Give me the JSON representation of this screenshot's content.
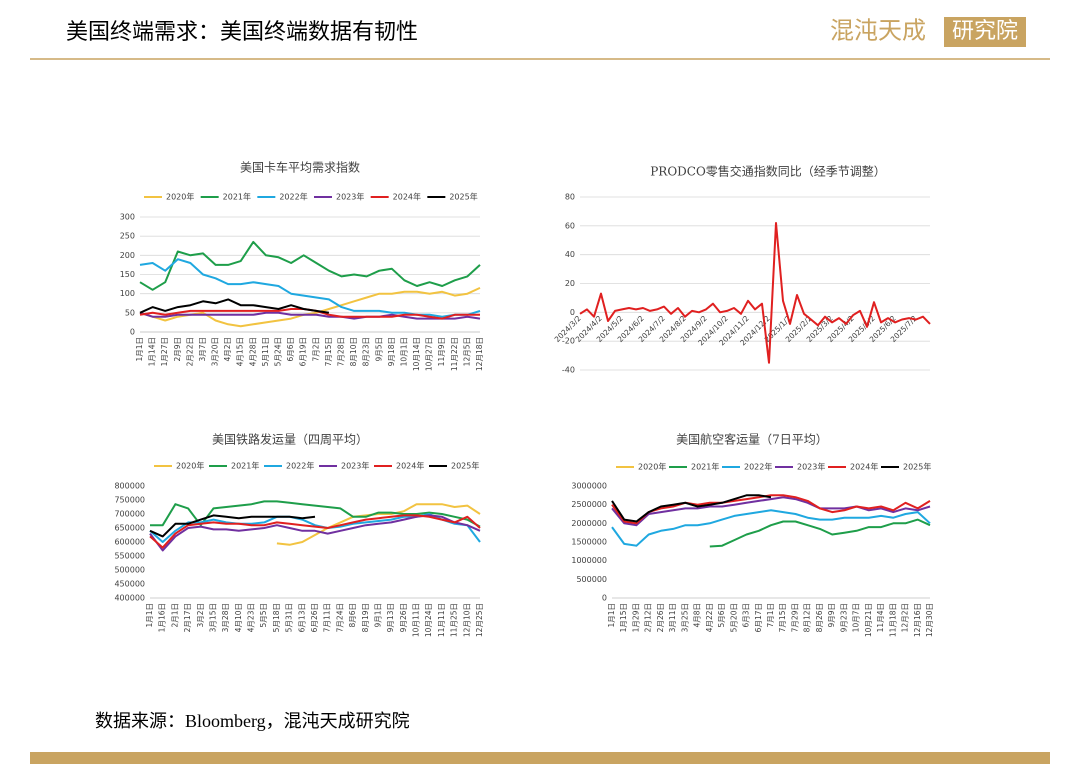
{
  "header": {
    "title": "美国终端需求：美国终端数据有韧性",
    "logo_name": "混沌天成",
    "logo_unit": "研究院"
  },
  "footer": {
    "source": "数据来源：Bloomberg，混沌天成研究院"
  },
  "chart_data": [
    {
      "type": "line",
      "title": "美国卡车平均需求指数",
      "grid": true,
      "legend": true,
      "ylim": [
        0,
        300
      ],
      "yticks": [
        0,
        50,
        100,
        150,
        200,
        250,
        300
      ],
      "categories": [
        "1月1日",
        "1月14日",
        "1月27日",
        "2月9日",
        "2月22日",
        "3月7日",
        "3月20日",
        "4月2日",
        "4月15日",
        "4月28日",
        "5月11日",
        "5月24日",
        "6月6日",
        "6月19日",
        "7月2日",
        "7月15日",
        "7月28日",
        "8月10日",
        "8月23日",
        "9月5日",
        "9月18日",
        "10月1日",
        "10月14日",
        "10月27日",
        "11月9日",
        "11月22日",
        "12月5日",
        "12月18日"
      ],
      "series": [
        {
          "name": "2020年",
          "color": "#f2c341",
          "values": [
            50,
            40,
            30,
            40,
            45,
            50,
            30,
            20,
            15,
            20,
            25,
            30,
            35,
            45,
            50,
            60,
            70,
            80,
            90,
            100,
            100,
            105,
            105,
            100,
            105,
            95,
            100,
            115
          ]
        },
        {
          "name": "2021年",
          "color": "#1e9e4a",
          "values": [
            130,
            110,
            130,
            210,
            200,
            205,
            175,
            175,
            185,
            235,
            200,
            195,
            180,
            200,
            180,
            160,
            145,
            150,
            145,
            160,
            165,
            135,
            120,
            130,
            120,
            135,
            145,
            175
          ]
        },
        {
          "name": "2022年",
          "color": "#1fa8e0",
          "values": [
            175,
            180,
            160,
            190,
            180,
            150,
            140,
            125,
            125,
            130,
            125,
            120,
            100,
            95,
            90,
            85,
            65,
            55,
            55,
            55,
            50,
            50,
            45,
            45,
            40,
            45,
            45,
            55
          ]
        },
        {
          "name": "2023年",
          "color": "#7030a0",
          "values": [
            50,
            40,
            40,
            45,
            45,
            45,
            45,
            45,
            45,
            45,
            50,
            50,
            45,
            45,
            45,
            40,
            40,
            35,
            40,
            40,
            45,
            40,
            35,
            35,
            35,
            35,
            40,
            35
          ]
        },
        {
          "name": "2024年",
          "color": "#e02020",
          "values": [
            45,
            50,
            45,
            50,
            55,
            55,
            55,
            55,
            55,
            55,
            55,
            55,
            60,
            60,
            55,
            45,
            40,
            40,
            40,
            40,
            40,
            45,
            45,
            40,
            35,
            45,
            45,
            45
          ]
        },
        {
          "name": "2025年",
          "color": "#000000",
          "values": [
            50,
            65,
            55,
            65,
            70,
            80,
            75,
            85,
            70,
            70,
            65,
            60,
            70,
            60,
            55,
            50,
            null,
            null,
            null,
            null,
            null,
            null,
            null,
            null,
            null,
            null,
            null,
            null
          ]
        }
      ]
    },
    {
      "type": "line",
      "title": "PRODCO零售交通指数同比（经季节调整）",
      "grid": true,
      "legend": false,
      "ylim": [
        -40,
        80
      ],
      "yticks": [
        -40,
        -20,
        0,
        20,
        40,
        60,
        80
      ],
      "color": "#e02020",
      "categories": [
        "2024/3/2",
        null,
        null,
        "2024/4/2",
        null,
        null,
        "2024/5/2",
        null,
        null,
        "2024/6/2",
        null,
        null,
        "2024/7/2",
        null,
        null,
        "2024/8/2",
        null,
        null,
        "2024/9/2",
        null,
        null,
        "2024/10/2",
        null,
        null,
        "2024/11/2",
        null,
        null,
        "2024/12/2",
        null,
        null,
        "2025/1/2",
        null,
        null,
        "2025/2/2",
        null,
        null,
        "2025/3/2",
        null,
        null,
        "2025/4/2",
        null,
        null,
        "2025/5/2",
        null,
        null,
        "2025/6/2",
        null,
        null,
        "2025/7/2",
        null,
        null
      ],
      "values": [
        -1,
        2,
        -3,
        13,
        -6,
        1,
        2,
        3,
        2,
        3,
        1,
        2,
        4,
        -1,
        3,
        -3,
        1,
        0,
        2,
        6,
        0,
        1,
        3,
        -1,
        8,
        2,
        6,
        -35,
        62,
        8,
        -8,
        12,
        -1,
        -5,
        -9,
        -3,
        -7,
        -4,
        -8,
        -2,
        1,
        -10,
        7,
        -7,
        -4,
        -7,
        -5,
        -4,
        -5,
        -3,
        -8
      ]
    },
    {
      "type": "line",
      "title": "美国铁路发运量（四周平均）",
      "grid": false,
      "legend": true,
      "ylim": [
        400000,
        800000
      ],
      "yticks": [
        400000,
        450000,
        500000,
        550000,
        600000,
        650000,
        700000,
        750000,
        800000
      ],
      "categories": [
        "1月1日",
        "1月16日",
        "2月1日",
        "2月17日",
        "3月2日",
        "3月15日",
        "3月28日",
        "4月10日",
        "4月23日",
        "5月5日",
        "5月18日",
        "5月31日",
        "6月13日",
        "6月26日",
        "7月11日",
        "7月24日",
        "8月6日",
        "8月19日",
        "9月1日",
        "9月13日",
        "9月26日",
        "10月11日",
        "10月24日",
        "11月11日",
        "11月25日",
        "12月10日",
        "12月25日"
      ],
      "series": [
        {
          "name": "2020年",
          "color": "#f2c341",
          "values": [
            null,
            null,
            null,
            null,
            null,
            null,
            null,
            null,
            null,
            null,
            595000,
            590000,
            600000,
            625000,
            650000,
            670000,
            690000,
            695000,
            700000,
            700000,
            710000,
            735000,
            735000,
            735000,
            725000,
            730000,
            700000
          ]
        },
        {
          "name": "2021年",
          "color": "#1e9e4a",
          "values": [
            660000,
            660000,
            735000,
            720000,
            660000,
            720000,
            725000,
            730000,
            735000,
            745000,
            745000,
            740000,
            735000,
            730000,
            725000,
            720000,
            690000,
            690000,
            705000,
            705000,
            700000,
            700000,
            705000,
            700000,
            690000,
            680000,
            655000
          ]
        },
        {
          "name": "2022年",
          "color": "#1fa8e0",
          "values": [
            640000,
            600000,
            640000,
            670000,
            670000,
            680000,
            670000,
            665000,
            665000,
            670000,
            690000,
            690000,
            680000,
            660000,
            650000,
            655000,
            665000,
            670000,
            675000,
            680000,
            690000,
            690000,
            700000,
            680000,
            665000,
            660000,
            600000
          ]
        },
        {
          "name": "2023年",
          "color": "#7030a0",
          "values": [
            630000,
            570000,
            620000,
            650000,
            655000,
            645000,
            645000,
            640000,
            645000,
            650000,
            660000,
            650000,
            640000,
            640000,
            630000,
            640000,
            650000,
            660000,
            665000,
            670000,
            680000,
            690000,
            695000,
            690000,
            670000,
            660000,
            640000
          ]
        },
        {
          "name": "2024年",
          "color": "#e02020",
          "values": [
            620000,
            580000,
            630000,
            660000,
            665000,
            670000,
            665000,
            665000,
            660000,
            660000,
            670000,
            665000,
            660000,
            655000,
            650000,
            660000,
            670000,
            680000,
            685000,
            690000,
            695000,
            695000,
            690000,
            680000,
            670000,
            690000,
            650000
          ]
        },
        {
          "name": "2025年",
          "color": "#000000",
          "values": [
            640000,
            620000,
            665000,
            665000,
            680000,
            695000,
            690000,
            685000,
            690000,
            690000,
            690000,
            690000,
            685000,
            690000,
            null,
            null,
            null,
            null,
            null,
            null,
            null,
            null,
            null,
            null,
            null,
            null,
            null
          ]
        }
      ]
    },
    {
      "type": "line",
      "title": "美国航空客运量（7日平均）",
      "grid": false,
      "legend": true,
      "ylim": [
        0,
        3000000
      ],
      "yticks": [
        0,
        500000,
        1000000,
        1500000,
        2000000,
        2500000,
        3000000
      ],
      "categories": [
        "1月1日",
        "1月15日",
        "1月29日",
        "2月12日",
        "2月26日",
        "3月11日",
        "3月25日",
        "4月8日",
        "4月22日",
        "5月6日",
        "5月20日",
        "6月3日",
        "6月17日",
        "7月1日",
        "7月15日",
        "7月29日",
        "8月12日",
        "8月26日",
        "9月9日",
        "9月23日",
        "10月7日",
        "10月21日",
        "11月4日",
        "11月18日",
        "12月2日",
        "12月16日",
        "12月30日"
      ],
      "series": [
        {
          "name": "2020年",
          "color": "#f2c341",
          "values": [
            null,
            null,
            null,
            null,
            null,
            null,
            null,
            null,
            null,
            null,
            null,
            null,
            null,
            null,
            null,
            null,
            null,
            null,
            null,
            null,
            null,
            null,
            null,
            null,
            null,
            null,
            null
          ]
        },
        {
          "name": "2021年",
          "color": "#1e9e4a",
          "values": [
            null,
            null,
            null,
            null,
            null,
            null,
            null,
            null,
            1380000,
            1400000,
            1550000,
            1700000,
            1800000,
            1950000,
            2050000,
            2050000,
            1950000,
            1850000,
            1700000,
            1750000,
            1800000,
            1900000,
            1900000,
            2000000,
            2000000,
            2100000,
            1950000
          ]
        },
        {
          "name": "2022年",
          "color": "#1fa8e0",
          "values": [
            1900000,
            1450000,
            1400000,
            1700000,
            1800000,
            1850000,
            1950000,
            1950000,
            2000000,
            2100000,
            2200000,
            2250000,
            2300000,
            2350000,
            2300000,
            2250000,
            2150000,
            2100000,
            2100000,
            2150000,
            2150000,
            2150000,
            2200000,
            2150000,
            2250000,
            2300000,
            2000000
          ]
        },
        {
          "name": "2023年",
          "color": "#7030a0",
          "values": [
            2400000,
            2000000,
            1950000,
            2250000,
            2300000,
            2350000,
            2400000,
            2400000,
            2450000,
            2450000,
            2500000,
            2550000,
            2600000,
            2650000,
            2700000,
            2650000,
            2550000,
            2400000,
            2400000,
            2400000,
            2450000,
            2350000,
            2400000,
            2300000,
            2400000,
            2350000,
            2450000
          ]
        },
        {
          "name": "2024年",
          "color": "#e02020",
          "values": [
            2500000,
            2050000,
            2000000,
            2300000,
            2400000,
            2450000,
            2550000,
            2500000,
            2550000,
            2550000,
            2600000,
            2650000,
            2700000,
            2750000,
            2750000,
            2700000,
            2600000,
            2400000,
            2300000,
            2350000,
            2450000,
            2400000,
            2450000,
            2350000,
            2550000,
            2400000,
            2600000
          ]
        },
        {
          "name": "2025年",
          "color": "#000000",
          "values": [
            2600000,
            2100000,
            2050000,
            2300000,
            2450000,
            2500000,
            2550000,
            2450000,
            2500000,
            2550000,
            2650000,
            2750000,
            2750000,
            2700000,
            null,
            null,
            null,
            null,
            null,
            null,
            null,
            null,
            null,
            null,
            null,
            null,
            null
          ]
        }
      ]
    }
  ]
}
